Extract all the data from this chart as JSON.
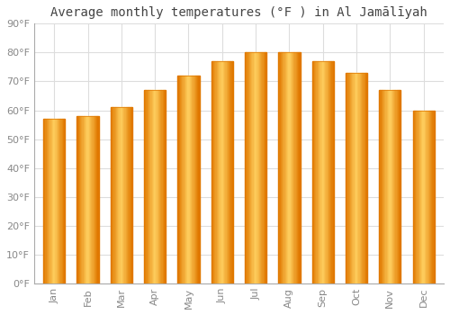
{
  "title": "Average monthly temperatures (°F ) in Al Jamālīyah",
  "months": [
    "Jan",
    "Feb",
    "Mar",
    "Apr",
    "May",
    "Jun",
    "Jul",
    "Aug",
    "Sep",
    "Oct",
    "Nov",
    "Dec"
  ],
  "values": [
    57,
    58,
    61,
    67,
    72,
    77,
    80,
    80,
    77,
    73,
    67,
    60
  ],
  "bar_color_main": "#FFAA00",
  "bar_color_light": "#FFD060",
  "bar_color_dark": "#E07800",
  "background_color": "#ffffff",
  "plot_bg_color": "#ffffff",
  "ylim": [
    0,
    90
  ],
  "yticks": [
    0,
    10,
    20,
    30,
    40,
    50,
    60,
    70,
    80,
    90
  ],
  "title_fontsize": 10,
  "tick_fontsize": 8,
  "grid_color": "#dddddd",
  "tick_color": "#888888",
  "spine_color": "#aaaaaa"
}
